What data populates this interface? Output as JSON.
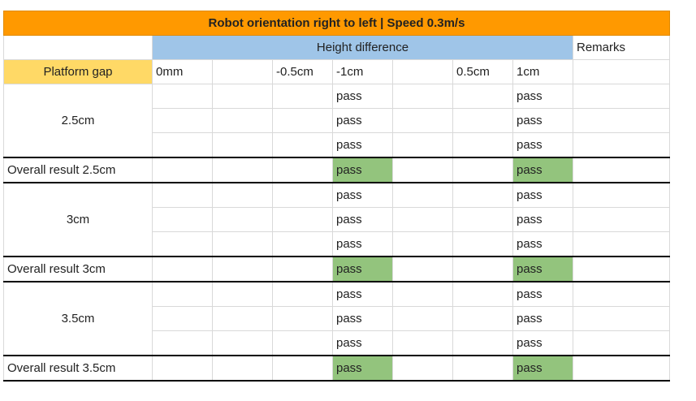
{
  "title": "Robot orientation right to left | Speed 0.3m/s",
  "height_header": "Height difference",
  "remarks_header": "Remarks",
  "platform_gap_header": "Platform gap",
  "height_columns": [
    "0mm",
    "",
    "-0.5cm",
    "-1cm",
    "",
    "0.5cm",
    "1cm"
  ],
  "groups": [
    {
      "gap": "2.5cm",
      "trials": [
        [
          "",
          "",
          "",
          "pass",
          "",
          "",
          "pass"
        ],
        [
          "",
          "",
          "",
          "pass",
          "",
          "",
          "pass"
        ],
        [
          "",
          "",
          "",
          "pass",
          "",
          "",
          "pass"
        ]
      ],
      "overall_label": "Overall result 2.5cm",
      "overall": [
        "",
        "",
        "",
        "pass",
        "",
        "",
        "pass"
      ]
    },
    {
      "gap": "3cm",
      "trials": [
        [
          "",
          "",
          "",
          "pass",
          "",
          "",
          "pass"
        ],
        [
          "",
          "",
          "",
          "pass",
          "",
          "",
          "pass"
        ],
        [
          "",
          "",
          "",
          "pass",
          "",
          "",
          "pass"
        ]
      ],
      "overall_label": "Overall result 3cm",
      "overall": [
        "",
        "",
        "",
        "pass",
        "",
        "",
        "pass"
      ]
    },
    {
      "gap": "3.5cm",
      "trials": [
        [
          "",
          "",
          "",
          "pass",
          "",
          "",
          "pass"
        ],
        [
          "",
          "",
          "",
          "pass",
          "",
          "",
          "pass"
        ],
        [
          "",
          "",
          "",
          "pass",
          "",
          "",
          "pass"
        ]
      ],
      "overall_label": "Overall result 3.5cm",
      "overall": [
        "",
        "",
        "",
        "pass",
        "",
        "",
        "pass"
      ]
    }
  ],
  "colors": {
    "title_bg": "#ff9900",
    "height_header_bg": "#9fc5e8",
    "platform_gap_bg": "#ffd966",
    "pass_overall_bg": "#93c47d"
  }
}
